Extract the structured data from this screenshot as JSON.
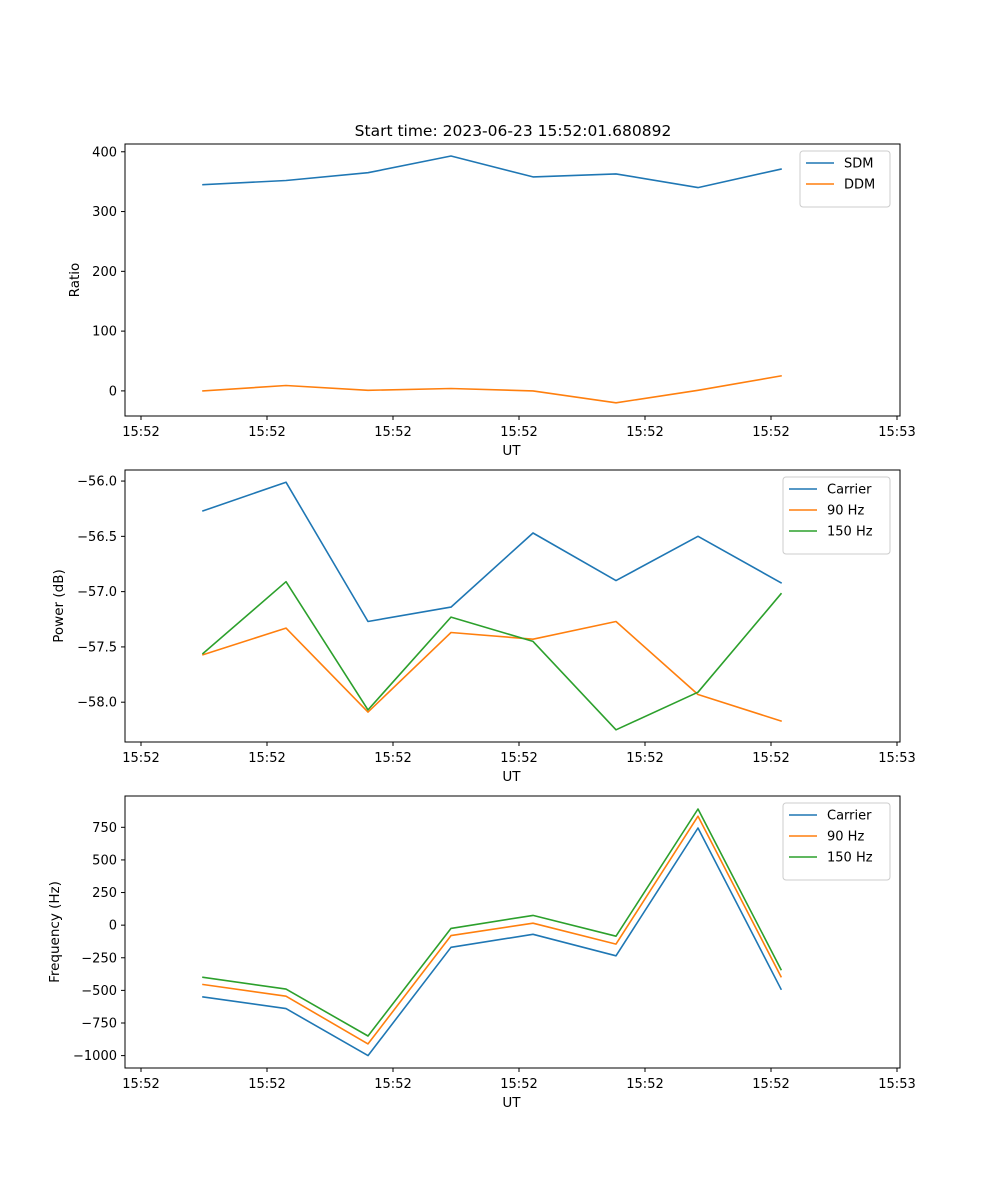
{
  "title": "Start time: 2023-06-23 15:52:01.680892",
  "colors": {
    "blue": "#1f77b4",
    "orange": "#ff7f0e",
    "green": "#2ca02c"
  },
  "chart_data": [
    {
      "type": "line",
      "title": "Start time: 2023-06-23 15:52:01.680892",
      "xlabel": "UT",
      "ylabel": "Ratio",
      "x_tick_labels": [
        "15:52",
        "15:52",
        "15:52",
        "15:52",
        "15:52",
        "15:52",
        "15:53"
      ],
      "yticks": [
        0,
        100,
        200,
        300,
        400
      ],
      "ylim": [
        -42,
        413
      ],
      "grid": false,
      "legend": "top-right",
      "series": [
        {
          "name": "SDM",
          "color": "#1f77b4",
          "values": [
            345,
            352,
            365,
            393,
            358,
            363,
            340,
            371
          ]
        },
        {
          "name": "DDM",
          "color": "#ff7f0e",
          "values": [
            0,
            9,
            1,
            4,
            0,
            -20,
            1,
            25
          ]
        }
      ]
    },
    {
      "type": "line",
      "title": "",
      "xlabel": "UT",
      "ylabel": "Power (dB)",
      "x_tick_labels": [
        "15:52",
        "15:52",
        "15:52",
        "15:52",
        "15:52",
        "15:52",
        "15:53"
      ],
      "yticks": [
        -56.0,
        -56.5,
        -57.0,
        -57.5,
        -58.0
      ],
      "ylim": [
        -58.36,
        -55.9
      ],
      "grid": false,
      "legend": "top-right",
      "series": [
        {
          "name": "Carrier",
          "color": "#1f77b4",
          "values": [
            -56.27,
            -56.01,
            -57.27,
            -57.14,
            -56.47,
            -56.9,
            -56.5,
            -56.92
          ]
        },
        {
          "name": "90 Hz",
          "color": "#ff7f0e",
          "values": [
            -57.57,
            -57.33,
            -58.09,
            -57.37,
            -57.43,
            -57.27,
            -57.93,
            -58.17
          ]
        },
        {
          "name": "150 Hz",
          "color": "#2ca02c",
          "values": [
            -57.56,
            -56.91,
            -58.07,
            -57.23,
            -57.45,
            -58.25,
            -57.91,
            -57.02
          ]
        }
      ]
    },
    {
      "type": "line",
      "title": "",
      "xlabel": "UT",
      "ylabel": "Frequency (Hz)",
      "x_tick_labels": [
        "15:52",
        "15:52",
        "15:52",
        "15:52",
        "15:52",
        "15:52",
        "15:53"
      ],
      "yticks": [
        750,
        500,
        250,
        0,
        -250,
        -500,
        -750,
        -1000
      ],
      "ylim": [
        -1095,
        990
      ],
      "grid": false,
      "legend": "top-right",
      "series": [
        {
          "name": "Carrier",
          "color": "#1f77b4",
          "values": [
            -550,
            -640,
            -1000,
            -170,
            -70,
            -235,
            745,
            -490
          ]
        },
        {
          "name": "90 Hz",
          "color": "#ff7f0e",
          "values": [
            -455,
            -545,
            -910,
            -80,
            15,
            -145,
            835,
            -395
          ]
        },
        {
          "name": "150 Hz",
          "color": "#2ca02c",
          "values": [
            -400,
            -490,
            -850,
            -25,
            75,
            -85,
            890,
            -340
          ]
        }
      ]
    }
  ]
}
